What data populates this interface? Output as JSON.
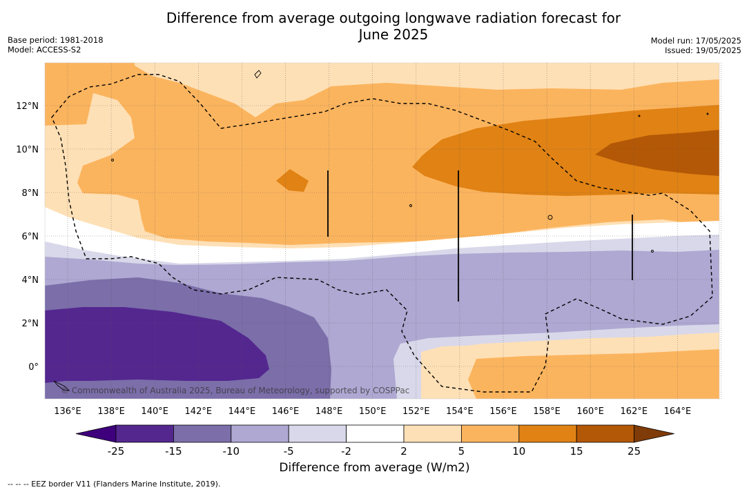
{
  "header": {
    "title_line1": "Difference from average outgoing longwave radiation forecast for",
    "title_line2": "June 2025",
    "base_period": "Base period: 1981-2018",
    "model": "Model: ACCESS-S2",
    "model_run": "Model run: 17/05/2025",
    "issued": "Issued: 19/05/2025"
  },
  "map": {
    "lon_ticks": [
      "136°E",
      "138°E",
      "140°E",
      "142°E",
      "144°E",
      "146°E",
      "148°E",
      "150°E",
      "152°E",
      "154°E",
      "156°E",
      "158°E",
      "160°E",
      "162°E",
      "164°E"
    ],
    "lat_ticks": [
      "12°N",
      "10°N",
      "8°N",
      "6°N",
      "4°N",
      "2°N",
      "0°"
    ],
    "credit": "© Commonwealth of Australia 2025, Bureau of Meteorology, supported by COSPPac"
  },
  "colorbar": {
    "tick_labels": [
      "-25",
      "-15",
      "-10",
      "-5",
      "-2",
      "2",
      "5",
      "10",
      "15",
      "25"
    ],
    "colors": [
      "#3f007d",
      "#54278f",
      "#7b6ea9",
      "#aea8d2",
      "#d8d8ea",
      "#ffffff",
      "#fee0b6",
      "#fbb45e",
      "#e08214",
      "#b35806",
      "#7f3b08"
    ],
    "title": "Difference from average (W/m2)"
  },
  "footer": {
    "legend_line": "--  --  -- EEZ border V11 (Flanders Marine Institute, 2019)."
  }
}
